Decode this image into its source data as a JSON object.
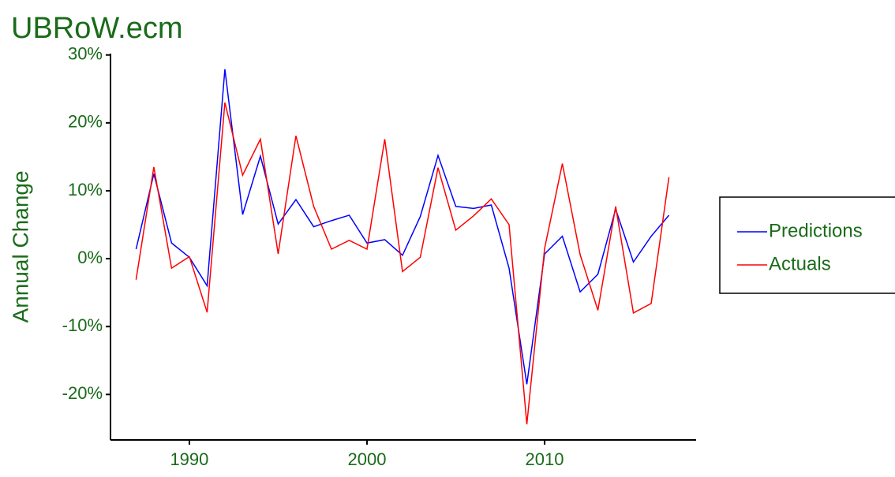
{
  "chart_data": {
    "type": "line",
    "title": "UBRoW.ecm",
    "y_label": "Annual Change",
    "x": [
      1987,
      1988,
      1989,
      1990,
      1991,
      1992,
      1993,
      1994,
      1995,
      1996,
      1997,
      1998,
      1999,
      2000,
      2001,
      2002,
      2003,
      2004,
      2005,
      2006,
      2007,
      2008,
      2009,
      2010,
      2011,
      2012,
      2013,
      2014,
      2015,
      2016,
      2017
    ],
    "series": [
      {
        "name": "Predictions",
        "color": "#0000ff",
        "values": [
          1.4,
          12.5,
          2.3,
          0.2,
          -4,
          27.9,
          6.5,
          15.1,
          5.1,
          8.7,
          4.7,
          5.6,
          6.4,
          2.3,
          2.8,
          0.5,
          6.2,
          15.2,
          7.7,
          7.4,
          7.9,
          -1.4,
          -18.5,
          0.7,
          3.3,
          -4.9,
          -2.3,
          7.3,
          -0.5,
          3.3,
          6.4
        ]
      },
      {
        "name": "Actuals",
        "color": "#ff0000",
        "values": [
          -3.1,
          13.5,
          -1.4,
          0.3,
          -7.9,
          23.0,
          12.3,
          17.6,
          0.7,
          18.1,
          7.7,
          1.4,
          2.7,
          1.4,
          17.6,
          -1.9,
          0.2,
          13.4,
          4.2,
          6.3,
          8.8,
          5.0,
          -24.4,
          1.5,
          14.0,
          0.6,
          -7.6,
          7.7,
          -8.0,
          -6.6,
          12.0
        ]
      }
    ],
    "xlim": [
      1985.56,
      2018.53
    ],
    "xticks": [
      1990,
      2000,
      2010
    ],
    "ylim": [
      -26.7,
      30.2
    ],
    "yticks": [
      {
        "value": -20,
        "label": "-20%"
      },
      {
        "value": -10,
        "label": "-10%"
      },
      {
        "value": 0,
        "label": "0%"
      },
      {
        "value": 10,
        "label": "10%"
      },
      {
        "value": 20,
        "label": "20%"
      },
      {
        "value": 30,
        "label": "30%"
      }
    ],
    "legend": "right",
    "grid": false
  }
}
